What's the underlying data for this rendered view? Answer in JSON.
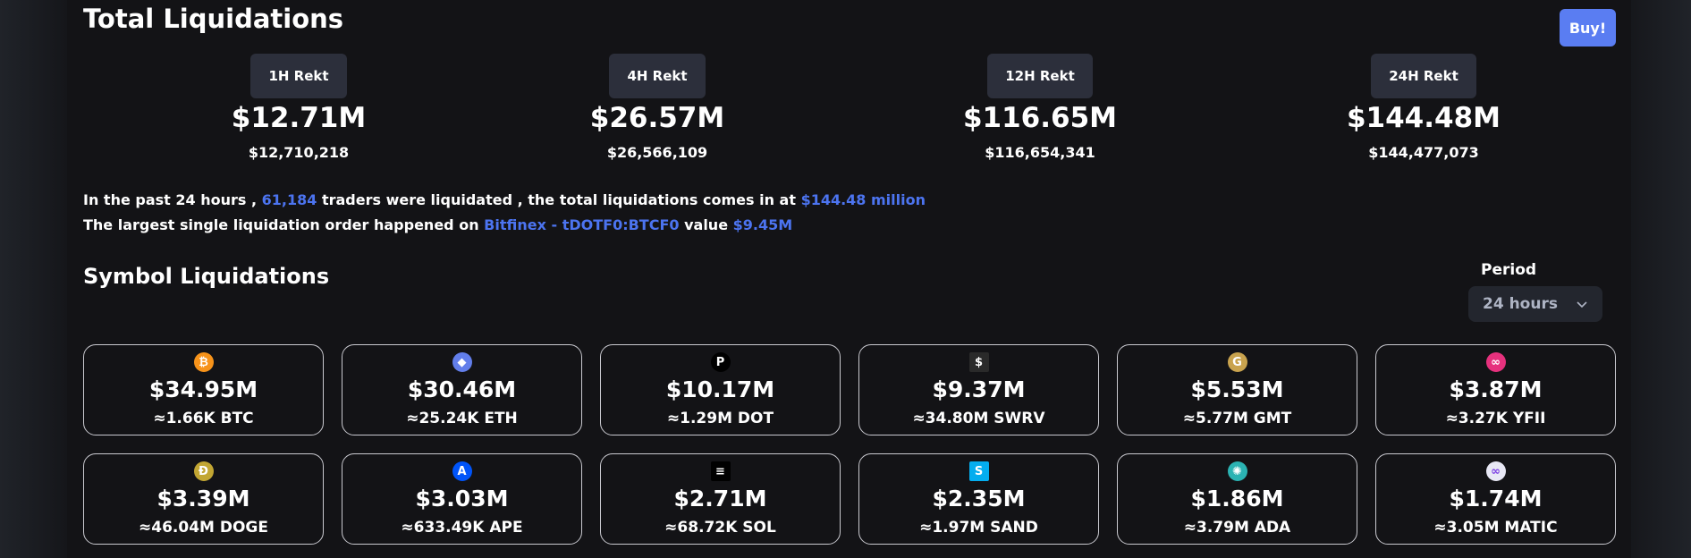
{
  "header": {
    "title": "Total Liquidations",
    "buy_label": "Buy!"
  },
  "rekt": [
    {
      "label": "1H Rekt",
      "value": "$12.71M",
      "exact": "$12,710,218"
    },
    {
      "label": "4H Rekt",
      "value": "$26.57M",
      "exact": "$26,566,109"
    },
    {
      "label": "12H Rekt",
      "value": "$116.65M",
      "exact": "$116,654,341"
    },
    {
      "label": "24H Rekt",
      "value": "$144.48M",
      "exact": "$144,477,073"
    }
  ],
  "summary": {
    "line1": {
      "prefix": "In the past 24 hours ,",
      "traders": "61,184",
      "middle": "traders were liquidated , the total liquidations comes in at",
      "total": "$144.48 million"
    },
    "line2": {
      "prefix": "The largest single liquidation order happened on",
      "exchange": "Bitfinex - tDOTF0:BTCF0",
      "middle": "value",
      "value": "$9.45M"
    }
  },
  "symbols": {
    "title": "Symbol Liquidations",
    "period_label": "Period",
    "period_value": "24 hours",
    "cards": [
      {
        "value": "$34.95M",
        "amount": "≈1.66K BTC",
        "icon": "bitcoin-icon",
        "icon_color": "#f7931a",
        "glyph": "₿"
      },
      {
        "value": "$30.46M",
        "amount": "≈25.24K ETH",
        "icon": "ethereum-icon",
        "icon_color": "#627eea",
        "glyph": "◆"
      },
      {
        "value": "$10.17M",
        "amount": "≈1.29M DOT",
        "icon": "polkadot-icon",
        "icon_color": "#000000",
        "glyph": "P"
      },
      {
        "value": "$9.37M",
        "amount": "≈34.80M SWRV",
        "icon": "swerve-icon",
        "icon_color": "#2a2a2a",
        "glyph": "$"
      },
      {
        "value": "$5.53M",
        "amount": "≈5.77M GMT",
        "icon": "gmt-icon",
        "icon_color": "#c9a34e",
        "glyph": "G"
      },
      {
        "value": "$3.87M",
        "amount": "≈3.27K YFII",
        "icon": "yfii-icon",
        "icon_color": "#e6317d",
        "glyph": "∞"
      },
      {
        "value": "$3.39M",
        "amount": "≈46.04M DOGE",
        "icon": "dogecoin-icon",
        "icon_color": "#c2a633",
        "glyph": "Ð"
      },
      {
        "value": "$3.03M",
        "amount": "≈633.49K APE",
        "icon": "apecoin-icon",
        "icon_color": "#0054f9",
        "glyph": "A"
      },
      {
        "value": "$2.71M",
        "amount": "≈68.72K SOL",
        "icon": "solana-icon",
        "icon_color": "#000000",
        "glyph": "≡"
      },
      {
        "value": "$2.35M",
        "amount": "≈1.97M SAND",
        "icon": "sandbox-icon",
        "icon_color": "#04adef",
        "glyph": "S"
      },
      {
        "value": "$1.86M",
        "amount": "≈3.79M ADA",
        "icon": "cardano-icon",
        "icon_color": "#2bb3b3",
        "glyph": "✺"
      },
      {
        "value": "$1.74M",
        "amount": "≈3.05M MATIC",
        "icon": "polygon-icon",
        "icon_color": "#e8e8f5",
        "glyph": "∞"
      }
    ]
  },
  "colors": {
    "accent": "#4c74f0",
    "buy": "#5a7df2",
    "tab_bg": "#2c2f3b"
  }
}
